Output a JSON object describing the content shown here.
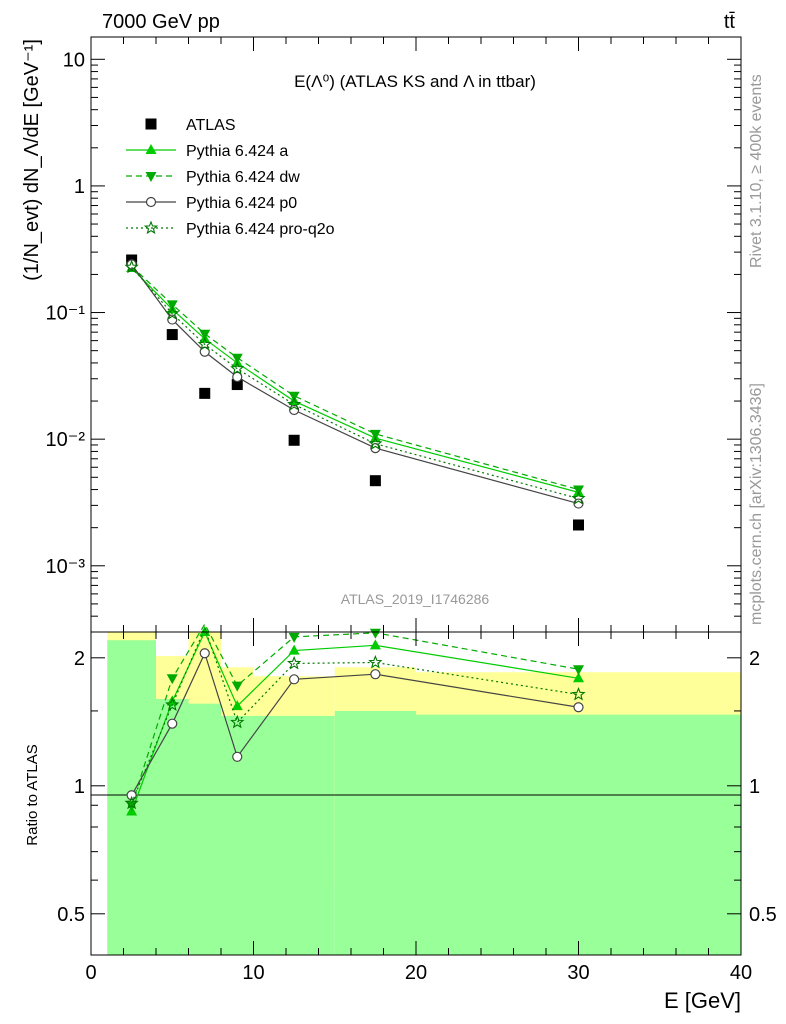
{
  "header": {
    "energy_label": "7000 GeV pp",
    "process_label": "tt̄"
  },
  "side_text": {
    "rivet": "Rivet 3.1.10, ≥ 400k events",
    "mcplots": "mcplots.cern.ch [arXiv:1306.3436]"
  },
  "chart_data": [
    {
      "type": "scatter",
      "title": "E(Λ⁰) (ATLAS KS and Λ in ttbar)",
      "ylabel": "(1/N_evt) dN_Λ/dE [GeV⁻¹]",
      "watermark": "ATLAS_2019_I1746286",
      "yscale": "log",
      "ylim": [
        0.0003,
        15
      ],
      "xlim": [
        0,
        40
      ],
      "y_tick_labels": [
        "10⁻³",
        "10⁻²",
        "10⁻¹",
        "1",
        "10"
      ],
      "legend_position": "top-left",
      "x": [
        2.5,
        5,
        7,
        9,
        12.5,
        17.5,
        30
      ],
      "series": [
        {
          "name": "ATLAS",
          "color": "#000000",
          "marker": "square",
          "line": "none",
          "values": [
            0.26,
            0.067,
            0.023,
            0.027,
            0.0098,
            0.0047,
            0.0021
          ]
        },
        {
          "name": "Pythia 6.424 a",
          "color": "#00cc00",
          "marker": "triangle-up",
          "line": "solid",
          "values": [
            0.225,
            0.106,
            0.062,
            0.04,
            0.02,
            0.0102,
            0.0038
          ]
        },
        {
          "name": "Pythia 6.424 dw",
          "color": "#00aa00",
          "marker": "triangle-down",
          "line": "dashed",
          "values": [
            0.232,
            0.116,
            0.068,
            0.044,
            0.022,
            0.011,
            0.004
          ]
        },
        {
          "name": "Pythia 6.424 p0",
          "color": "#444444",
          "marker": "circle-open",
          "line": "solid",
          "values": [
            0.24,
            0.088,
            0.049,
            0.031,
            0.017,
            0.0085,
            0.0031
          ]
        },
        {
          "name": "Pythia 6.424 pro-q2o",
          "color": "#007700",
          "marker": "star",
          "line": "dotted",
          "values": [
            0.228,
            0.098,
            0.056,
            0.036,
            0.0188,
            0.0092,
            0.0034
          ]
        }
      ]
    },
    {
      "type": "line",
      "ylabel": "Ratio to ATLAS",
      "xlabel": "E [GeV]",
      "ylim": [
        0.4,
        2.3
      ],
      "xlim": [
        0,
        40
      ],
      "x_tick_labels": [
        "0",
        "10",
        "20",
        "30",
        "40"
      ],
      "y_tick_labels": [
        "0.5",
        "1",
        "2"
      ],
      "bands": {
        "bin_edges": [
          1,
          4,
          6,
          8,
          10,
          15,
          20,
          40
        ],
        "green_low": [
          0.4,
          0.4,
          0.4,
          0.4,
          0.4,
          0.4,
          0.4
        ],
        "green_high": [
          2.2,
          1.6,
          1.56,
          1.46,
          1.46,
          1.5,
          1.47
        ],
        "yellow_low": [
          0.4,
          0.48,
          0.55,
          0.76,
          0.69,
          0.59,
          0.64
        ],
        "yellow_high": [
          2.3,
          2.02,
          2.3,
          1.9,
          1.81,
          1.9,
          1.85
        ],
        "green_color": "#99ff99",
        "yellow_color": "#ffff99"
      },
      "x": [
        2.5,
        5,
        7,
        9,
        12.5,
        17.5,
        30
      ],
      "series": [
        {
          "name": "Pythia 6.424 a",
          "values": [
            0.87,
            1.58,
            2.3,
            1.54,
            2.08,
            2.14,
            1.79
          ]
        },
        {
          "name": "Pythia 6.424 dw",
          "values": [
            0.9,
            1.79,
            2.4,
            1.72,
            2.24,
            2.29,
            1.88
          ]
        },
        {
          "name": "Pythia 6.424 p0",
          "values": [
            0.95,
            1.4,
            2.05,
            1.17,
            1.78,
            1.83,
            1.53
          ]
        },
        {
          "name": "Pythia 6.424 pro-q2o",
          "values": [
            0.91,
            1.55,
            2.35,
            1.41,
            1.94,
            1.95,
            1.64
          ]
        }
      ]
    }
  ]
}
